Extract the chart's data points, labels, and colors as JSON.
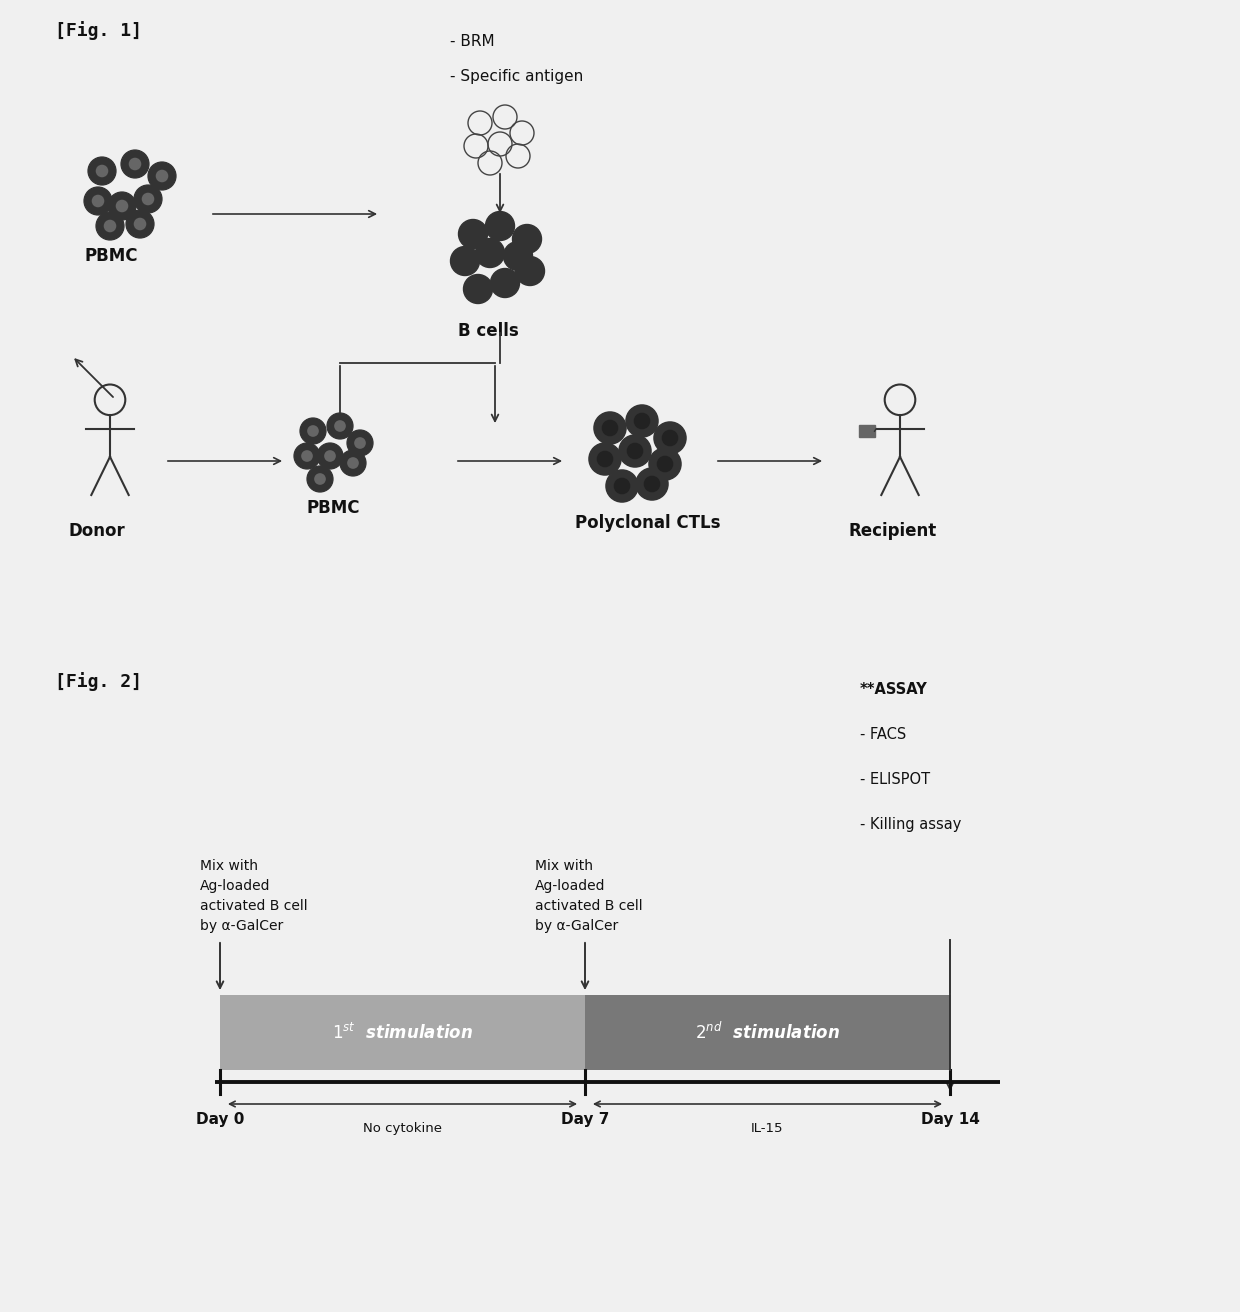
{
  "bg_color": "#f0f0f0",
  "fig1_label": "[Fig. 1]",
  "fig2_label": "[Fig. 2]",
  "fig1_brm_label": "- BRM",
  "fig1_antigen_label": "- Specific antigen",
  "fig1_bcells_label": "B cells",
  "fig1_pbmc_top_label": "PBMC",
  "fig1_donor_label": "Donor",
  "fig1_pbmc_bottom_label": "PBMC",
  "fig1_ctl_label": "Polyclonal CTLs",
  "fig1_recipient_label": "Recipient",
  "fig2_text1": "Mix with\nAg-loaded\nactivated B cell\nby α-GalCer",
  "fig2_text2": "Mix with\nAg-loaded\nactivated B cell\nby α-GalCer",
  "fig2_assay_line1": "**ASSAY",
  "fig2_assay_line2": "- FACS",
  "fig2_assay_line3": "- ELISPOT",
  "fig2_assay_line4": "- Killing assay",
  "fig2_stim1_label": "$1^{st}$  stimulation",
  "fig2_stim2_label": "$2^{nd}$  stimulation",
  "fig2_day0": "Day 0",
  "fig2_day7": "Day 7",
  "fig2_day14": "Day 14",
  "fig2_nocytokine": "No cytokine",
  "fig2_il15": "IL-15",
  "stim1_color": "#a8a8a8",
  "stim2_color": "#787878",
  "text_color": "#111111",
  "dark_color": "#333333",
  "cell_dark": "#555555",
  "cell_mid": "#888888"
}
